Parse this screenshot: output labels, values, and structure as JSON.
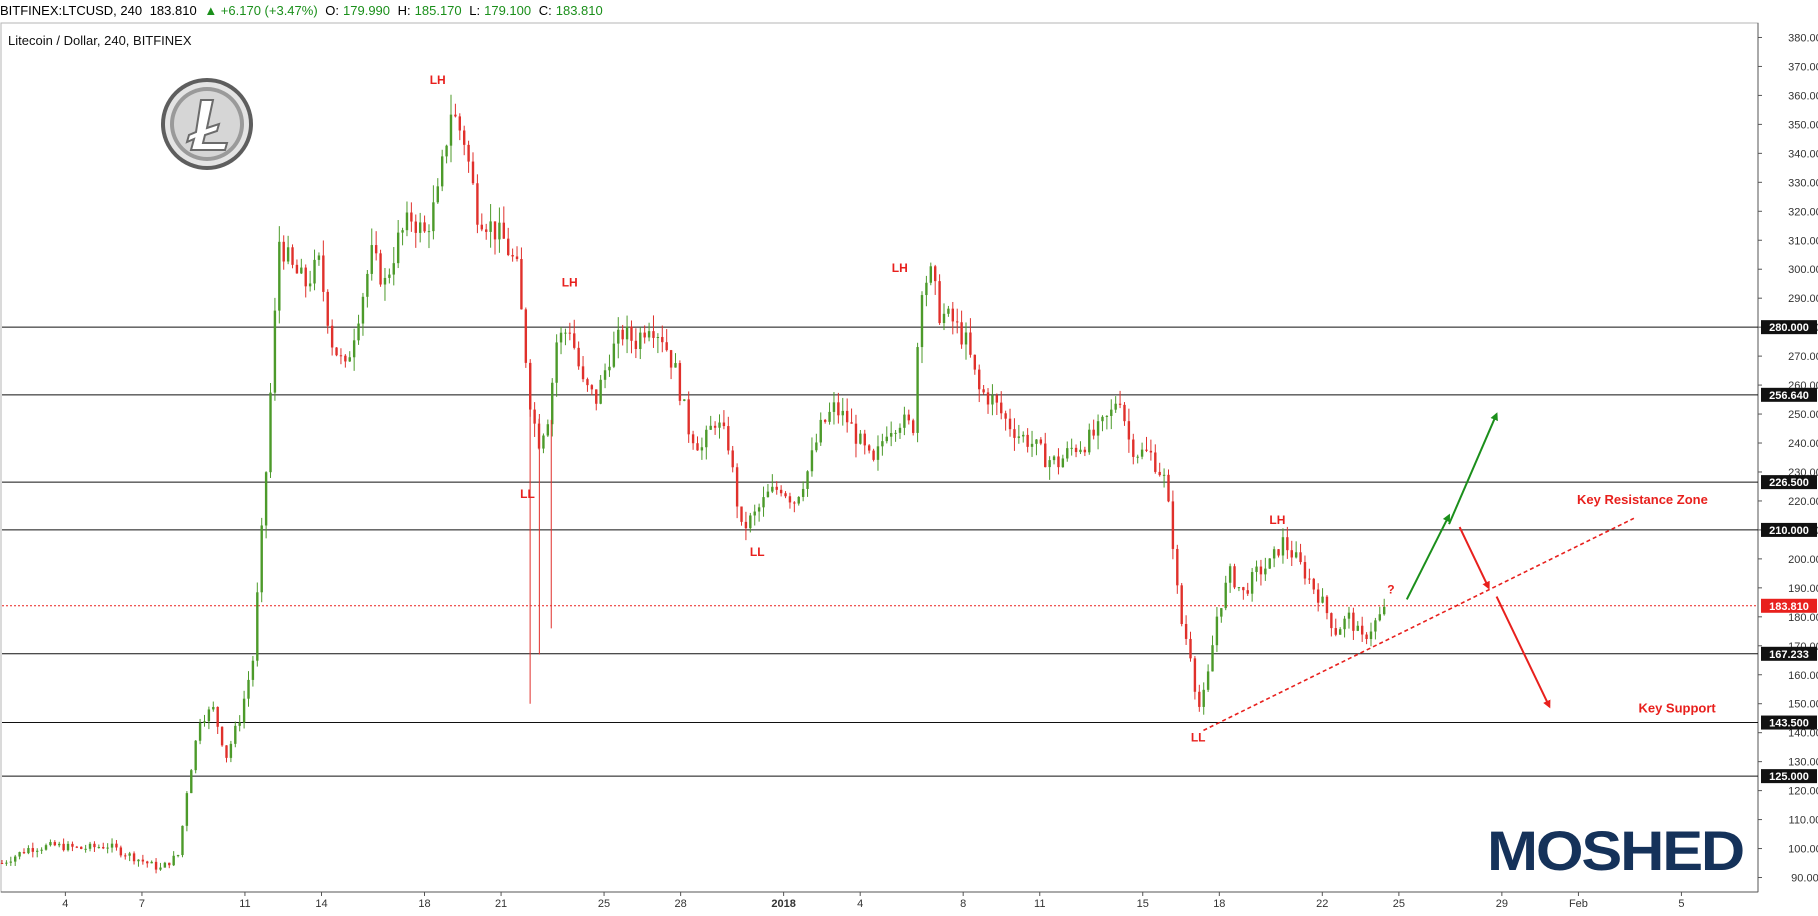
{
  "header": {
    "symbol": "BITFINEX:LTCUSD, 240",
    "last": "183.810",
    "change": "▲ +6.170 (+3.47%)",
    "o_label": "O:",
    "o_value": "179.990",
    "h_label": "H:",
    "h_value": "185.170",
    "l_label": "L:",
    "l_value": "179.100",
    "c_label": "C:",
    "c_value": "183.810"
  },
  "subtitle": "Litecoin / Dollar, 240, BITFINEX",
  "watermark": "MOSHED",
  "colors": {
    "up": "#4c9a2a",
    "down": "#e0302b",
    "annotation": "#e8201d",
    "green_arrow": "#1b8f1b",
    "brand": "#15325a"
  },
  "chart_data": {
    "type": "candlestick",
    "ylim": [
      85,
      385
    ],
    "xlim": [
      0,
      66.5
    ],
    "y_ticks": [
      "90.000",
      "100.000",
      "110.000",
      "120.000",
      "130.000",
      "140.000",
      "150.000",
      "160.000",
      "170.000",
      "180.000",
      "190.000",
      "200.000",
      "210.000",
      "220.000",
      "230.000",
      "240.000",
      "250.000",
      "260.000",
      "270.000",
      "280.000",
      "290.000",
      "300.000",
      "310.000",
      "320.000",
      "330.000",
      "340.000",
      "350.000",
      "360.000",
      "370.000",
      "380.000"
    ],
    "x_ticks": [
      {
        "d": 2.4,
        "label": "4"
      },
      {
        "d": 5.3,
        "label": "7"
      },
      {
        "d": 9.2,
        "label": "11"
      },
      {
        "d": 12.1,
        "label": "14"
      },
      {
        "d": 16.0,
        "label": "18"
      },
      {
        "d": 18.9,
        "label": "21"
      },
      {
        "d": 22.8,
        "label": "25"
      },
      {
        "d": 25.7,
        "label": "28"
      },
      {
        "d": 29.6,
        "label": "2018"
      },
      {
        "d": 32.5,
        "label": "4"
      },
      {
        "d": 36.4,
        "label": "8"
      },
      {
        "d": 39.3,
        "label": "11"
      },
      {
        "d": 43.2,
        "label": "15"
      },
      {
        "d": 46.1,
        "label": "18"
      },
      {
        "d": 50.0,
        "label": "22"
      },
      {
        "d": 52.9,
        "label": "25"
      },
      {
        "d": 56.8,
        "label": "29"
      },
      {
        "d": 59.7,
        "label": "Feb"
      },
      {
        "d": 63.6,
        "label": "5"
      }
    ],
    "close_path": [
      [
        0,
        95
      ],
      [
        1,
        100
      ],
      [
        2,
        101
      ],
      [
        3,
        100
      ],
      [
        4,
        101
      ],
      [
        5,
        97
      ],
      [
        6,
        93
      ],
      [
        6.7,
        98
      ],
      [
        7,
        120
      ],
      [
        7.5,
        145
      ],
      [
        8,
        148
      ],
      [
        8.5,
        132
      ],
      [
        9,
        145
      ],
      [
        9.5,
        165
      ],
      [
        10,
        230
      ],
      [
        10.5,
        310
      ],
      [
        11,
        300
      ],
      [
        11.5,
        295
      ],
      [
        12,
        302
      ],
      [
        12.5,
        275
      ],
      [
        13,
        265
      ],
      [
        13.5,
        285
      ],
      [
        14,
        305
      ],
      [
        14.5,
        295
      ],
      [
        15,
        310
      ],
      [
        15.5,
        318
      ],
      [
        16,
        312
      ],
      [
        16.5,
        325
      ],
      [
        17,
        355
      ],
      [
        17.5,
        345
      ],
      [
        18,
        320
      ],
      [
        18.5,
        315
      ],
      [
        19,
        310
      ],
      [
        19.5,
        300
      ],
      [
        20,
        255
      ],
      [
        20.3,
        240
      ],
      [
        20.7,
        250
      ],
      [
        21,
        275
      ],
      [
        21.5,
        280
      ],
      [
        22,
        260
      ],
      [
        22.5,
        255
      ],
      [
        23,
        270
      ],
      [
        23.5,
        278
      ],
      [
        24,
        275
      ],
      [
        24.5,
        282
      ],
      [
        25,
        277
      ],
      [
        25.5,
        265
      ],
      [
        26,
        245
      ],
      [
        26.5,
        238
      ],
      [
        27,
        248
      ],
      [
        27.5,
        240
      ],
      [
        28,
        210
      ],
      [
        28.5,
        215
      ],
      [
        29,
        222
      ],
      [
        29.5,
        225
      ],
      [
        30,
        220
      ],
      [
        30.5,
        230
      ],
      [
        31,
        245
      ],
      [
        31.5,
        252
      ],
      [
        32,
        248
      ],
      [
        32.5,
        240
      ],
      [
        33,
        232
      ],
      [
        33.5,
        245
      ],
      [
        34,
        248
      ],
      [
        34.5,
        245
      ],
      [
        34.8,
        295
      ],
      [
        35.2,
        298
      ],
      [
        35.5,
        285
      ],
      [
        36,
        282
      ],
      [
        36.5,
        275
      ],
      [
        37,
        258
      ],
      [
        37.5,
        255
      ],
      [
        38,
        248
      ],
      [
        38.5,
        243
      ],
      [
        39,
        240
      ],
      [
        39.5,
        235
      ],
      [
        40,
        233
      ],
      [
        40.5,
        238
      ],
      [
        41,
        240
      ],
      [
        41.5,
        244
      ],
      [
        42,
        250
      ],
      [
        42.3,
        258
      ],
      [
        42.7,
        240
      ],
      [
        43,
        237
      ],
      [
        43.5,
        236
      ],
      [
        44,
        228
      ],
      [
        44.3,
        210
      ],
      [
        44.6,
        180
      ],
      [
        45,
        168
      ],
      [
        45.3,
        148
      ],
      [
        45.6,
        155
      ],
      [
        46,
        180
      ],
      [
        46.5,
        195
      ],
      [
        47,
        188
      ],
      [
        47.5,
        195
      ],
      [
        48,
        198
      ],
      [
        48.5,
        206
      ],
      [
        49,
        200
      ],
      [
        49.5,
        193
      ],
      [
        50,
        185
      ],
      [
        50.5,
        175
      ],
      [
        51,
        180
      ],
      [
        51.5,
        172
      ],
      [
        52,
        178
      ],
      [
        52.5,
        183.81
      ]
    ],
    "hlines": [
      {
        "y": 280.0,
        "label": "280.000"
      },
      {
        "y": 256.64,
        "label": "256.640"
      },
      {
        "y": 226.5,
        "label": "226.500"
      },
      {
        "y": 210.0,
        "label": "210.000"
      },
      {
        "y": 167.233,
        "label": "167.233"
      },
      {
        "y": 143.5,
        "label": "143.500"
      },
      {
        "y": 125.0,
        "label": "125.000"
      }
    ],
    "last_price": {
      "y": 183.81,
      "label": "183.810"
    },
    "annotations": [
      {
        "d": 16.5,
        "y": 364,
        "text": "LH"
      },
      {
        "d": 21.5,
        "y": 294,
        "text": "LH"
      },
      {
        "d": 19.9,
        "y": 221,
        "text": "LL"
      },
      {
        "d": 28.6,
        "y": 201,
        "text": "LL"
      },
      {
        "d": 34.0,
        "y": 299,
        "text": "LH"
      },
      {
        "d": 48.3,
        "y": 212,
        "text": "LH"
      },
      {
        "d": 45.3,
        "y": 137,
        "text": "LL"
      },
      {
        "d": 52.6,
        "y": 188,
        "text": "?"
      }
    ],
    "zone_labels": [
      {
        "text": "Key Resistance Zone",
        "d": 64.6,
        "y": 219
      },
      {
        "text": "Key Support",
        "d": 64.9,
        "y": 147
      }
    ],
    "trendline": {
      "from": [
        45.5,
        140.8
      ],
      "to": [
        61.8,
        214
      ]
    },
    "arrows": [
      {
        "color": "green",
        "from": [
          53.2,
          186
        ],
        "to": [
          54.8,
          215
        ]
      },
      {
        "color": "green",
        "from": [
          54.8,
          212
        ],
        "to": [
          56.6,
          250
        ]
      },
      {
        "color": "red",
        "from": [
          55.2,
          211
        ],
        "to": [
          56.3,
          190
        ]
      },
      {
        "color": "red",
        "from": [
          56.6,
          187
        ],
        "to": [
          58.6,
          149
        ]
      }
    ]
  }
}
